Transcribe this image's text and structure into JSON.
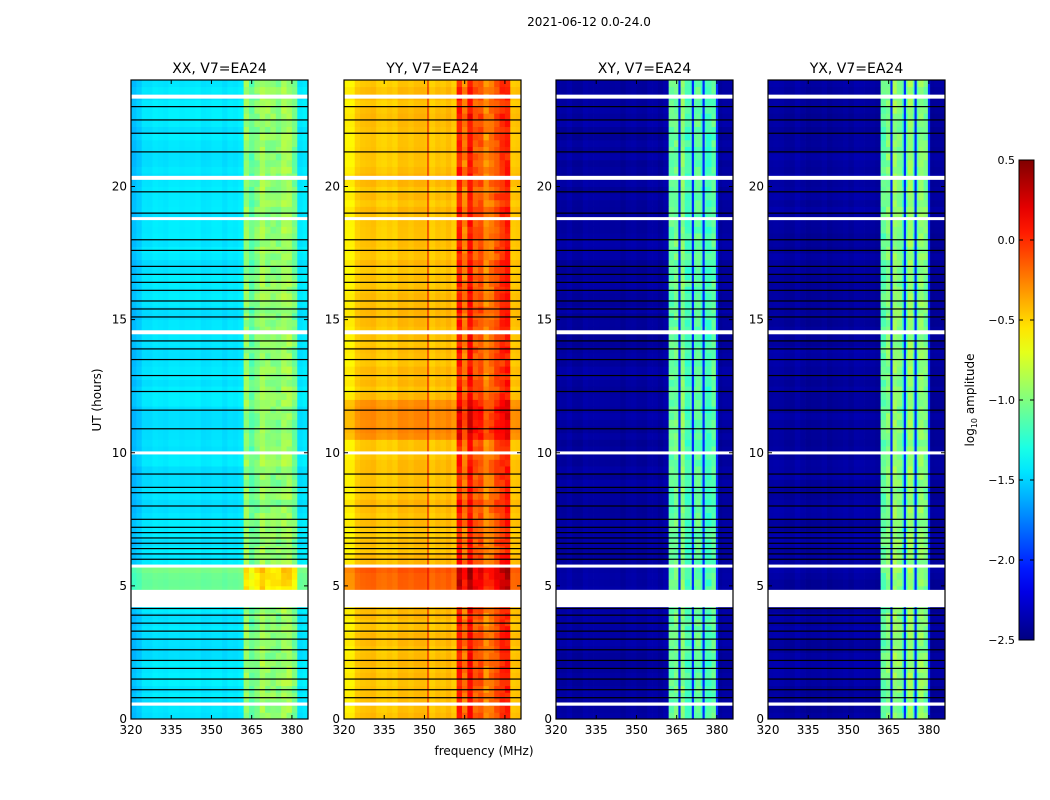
{
  "chart_data": {
    "type": "heatmap",
    "title": "2021-06-12 0.0-24.0",
    "xlabel": "frequency (MHz)",
    "ylabel": "UT (hours)",
    "xlim": [
      320,
      386
    ],
    "ylim": [
      0,
      24
    ],
    "xticks": [
      320,
      335,
      350,
      365,
      380
    ],
    "yticks": [
      0,
      5,
      10,
      15,
      20
    ],
    "colormap": "jet",
    "colorbar": {
      "label_main": "log",
      "label_sub": "10",
      "label_rest": " amplitude",
      "range": [
        -2.5,
        0.5
      ],
      "ticks": [
        "0.5",
        "0.0",
        "−0.5",
        "−1.0",
        "−1.5",
        "−2.0",
        "−2.5"
      ],
      "tick_values": [
        0.5,
        0.0,
        -0.5,
        -1.0,
        -1.5,
        -2.0,
        -2.5
      ]
    },
    "flagged_hours": [
      [
        0.5,
        0.62
      ],
      [
        4.2,
        4.85
      ],
      [
        5.7,
        5.8
      ],
      [
        9.95,
        10.05
      ],
      [
        14.45,
        14.6
      ],
      [
        18.75,
        18.85
      ],
      [
        20.25,
        20.4
      ],
      [
        23.3,
        23.45
      ]
    ],
    "black_line_hours": [
      0.8,
      1.1,
      1.5,
      1.9,
      2.2,
      2.6,
      3.0,
      3.3,
      3.6,
      3.9,
      4.15,
      6.0,
      6.2,
      6.4,
      6.6,
      6.8,
      7.0,
      7.2,
      7.5,
      8.0,
      8.5,
      8.7,
      9.2,
      10.9,
      11.6,
      12.3,
      12.9,
      13.5,
      13.9,
      14.2,
      15.1,
      15.4,
      15.7,
      16.1,
      16.4,
      16.7,
      17.0,
      17.6,
      18.0,
      19.0,
      19.8,
      21.3,
      22.0,
      22.5,
      23.0
    ],
    "panels": [
      {
        "title": "XX, V7=EA24",
        "low": -1.45,
        "high": -1.0,
        "high_band": [
          362,
          382
        ],
        "line_freqs": [],
        "bright_hours": [
          [
            4.85,
            5.7,
            0.4
          ]
        ],
        "stripe": 0.12
      },
      {
        "title": "YY, V7=EA24",
        "low": -0.45,
        "high": -0.1,
        "high_band": [
          362,
          382
        ],
        "line_freqs": [
          351.5
        ],
        "bright_hours": [
          [
            4.85,
            5.7,
            0.3
          ],
          [
            10.5,
            12,
            0.15
          ]
        ],
        "stripe": 0.2
      },
      {
        "title": "XY, V7=EA24",
        "low": -2.4,
        "high": -1.05,
        "high_band": [
          362,
          380
        ],
        "line_freqs": [
          366,
          371,
          375,
          380
        ],
        "bright_hours": [],
        "stripe": 0.15
      },
      {
        "title": "YX, V7=EA24",
        "low": -2.4,
        "high": -1.05,
        "high_band": [
          362,
          380
        ],
        "line_freqs": [
          366,
          371,
          375,
          380
        ],
        "bright_hours": [],
        "stripe": 0.15
      }
    ]
  }
}
